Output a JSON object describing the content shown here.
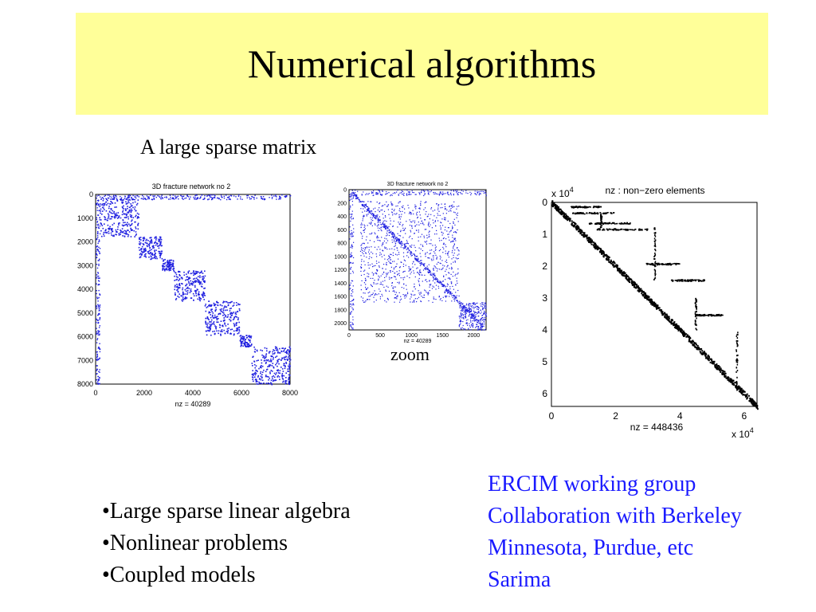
{
  "title": "Numerical algorithms",
  "subtitle": "A large sparse matrix",
  "zoom_label": "zoom",
  "plot1": {
    "title": "3D fracture network no 2",
    "xlabel": "nz = 40289",
    "xticks": [
      "0",
      "2000",
      "4000",
      "6000",
      "8000"
    ],
    "yticks": [
      "0",
      "1000",
      "2000",
      "3000",
      "4000",
      "5000",
      "6000",
      "7000",
      "8000"
    ]
  },
  "plot2": {
    "title": "3D fracture network no 2",
    "xlabel": "nz = 40289",
    "xticks": [
      "0",
      "500",
      "1000",
      "1500",
      "2000"
    ],
    "yticks": [
      "0",
      "200",
      "400",
      "600",
      "800",
      "1000",
      "1200",
      "1400",
      "1600",
      "1800",
      "2000"
    ]
  },
  "plot3": {
    "title": "nz : non−zero elements",
    "xlabel": "nz = 448436",
    "scale": "x 10",
    "exp": "4",
    "xticks": [
      "0",
      "2",
      "4",
      "6"
    ],
    "yticks": [
      "0",
      "1",
      "2",
      "3",
      "4",
      "5",
      "6"
    ]
  },
  "bullets": [
    "•Large sparse linear algebra",
    "•Nonlinear problems",
    "•Coupled models"
  ],
  "info_lines": [
    "ERCIM working group",
    "Collaboration with Berkeley",
    "Minnesota, Purdue, etc",
    "Sarima"
  ],
  "colors": {
    "title_bg": "#ffff99",
    "info_text": "#1a1aff",
    "spy_blue": "#1f1fe0"
  }
}
